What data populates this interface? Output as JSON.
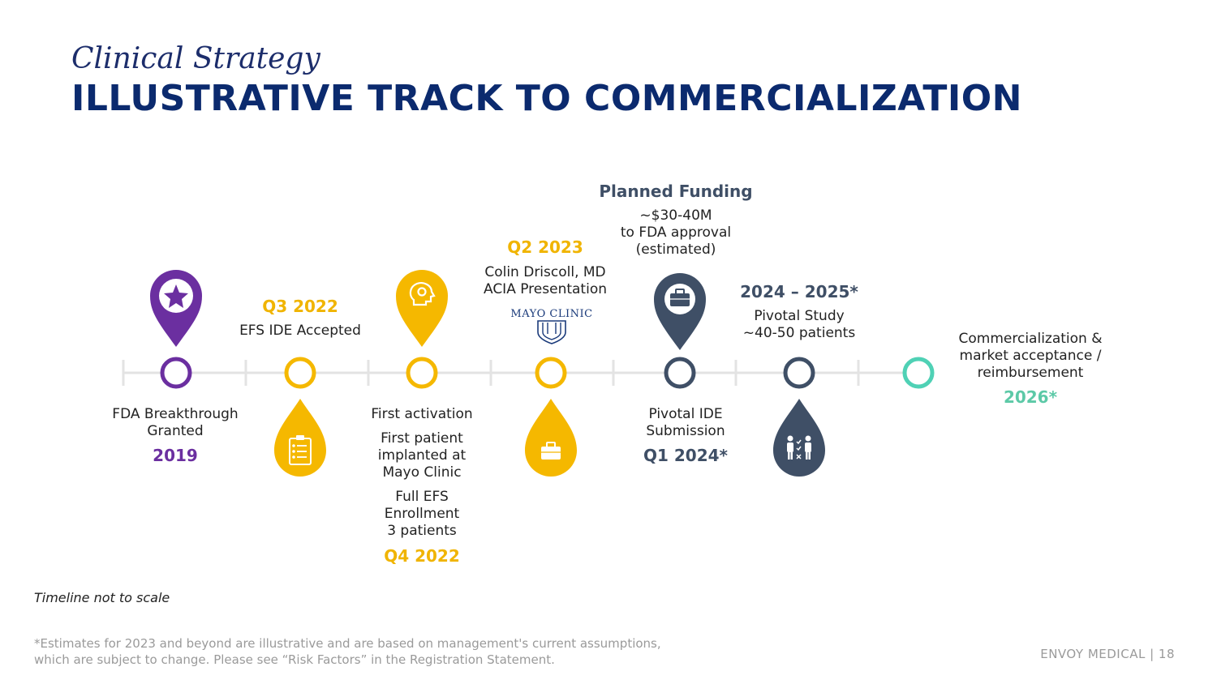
{
  "header": {
    "subtitle": "Clinical Strategy",
    "title": "ILLUSTRATIVE TRACK TO COMMERCIALIZATION"
  },
  "milestones": {
    "m1": {
      "desc": "FDA Breakthrough Granted",
      "line1": "FDA Breakthrough",
      "line2": "Granted",
      "date": "2019",
      "icon": "star-icon"
    },
    "m2": {
      "date": "Q3 2022",
      "desc": "EFS IDE Accepted",
      "icon": "checklist-icon"
    },
    "m3": {
      "l1": "First activation",
      "l2a": "First patient",
      "l2b": "implanted at",
      "l2c": "Mayo Clinic",
      "l3a": "Full EFS",
      "l3b": "Enrollment",
      "l3c": "3 patients",
      "date": "Q4 2022",
      "icon": "gear-head-icon"
    },
    "m4": {
      "date": "Q2 2023",
      "l1": "Colin Driscoll, MD",
      "l2": "ACIA Presentation",
      "logo": "MAYO CLINIC",
      "icon": "briefcase-icon"
    },
    "m5": {
      "heading": "Planned Funding",
      "l1": "~$30-40M",
      "l2": "to FDA approval",
      "l3": "(estimated)",
      "b1": "Pivotal IDE",
      "b2": "Submission",
      "date": "Q1 2024*",
      "icon": "briefcase-icon"
    },
    "m6": {
      "date": "2024 – 2025*",
      "l1": "Pivotal Study",
      "l2": "~40-50 patients",
      "icon": "people-icon"
    },
    "m7": {
      "l1": "Commercialization &",
      "l2": "market acceptance /",
      "l3": "reimbursement",
      "date": "2026*"
    }
  },
  "colors": {
    "purple": "#6b2fa0",
    "gold": "#f5b800",
    "navy": "#3f4f66",
    "teal": "#4fd1b5",
    "line": "#e3e3e3"
  },
  "footer": {
    "note": "Timeline not to scale",
    "disclaimer_1": "*Estimates for 2023 and beyond are illustrative and are based on management's current assumptions,",
    "disclaimer_2": "which are subject to change. Please see “Risk Factors” in the Registration Statement.",
    "page": "ENVOY MEDICAL | 18"
  }
}
